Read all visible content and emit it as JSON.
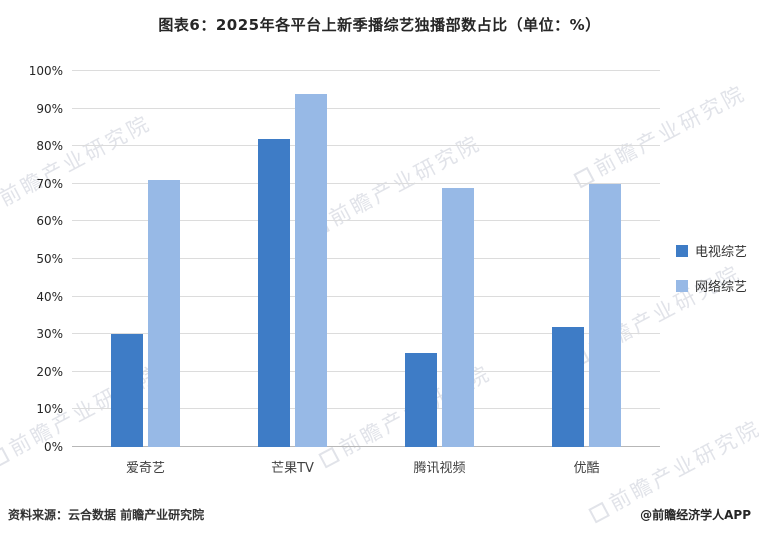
{
  "title": "图表6：2025年各平台上新季播综艺独播部数占比（单位：%）",
  "chart_data": {
    "type": "bar",
    "categories": [
      "爱奇艺",
      "芒果TV",
      "腾讯视频",
      "优酷"
    ],
    "series": [
      {
        "name": "电视综艺",
        "color": "#3e7cc6",
        "values": [
          30,
          82,
          25,
          32
        ]
      },
      {
        "name": "网络综艺",
        "color": "#97b9e6",
        "values": [
          71,
          94,
          69,
          70
        ]
      }
    ],
    "title": "图表6：2025年各平台上新季播综艺独播部数占比（单位：%）",
    "xlabel": "",
    "ylabel": "",
    "ylim": [
      0,
      100
    ],
    "ytick_step": 10,
    "ytick_suffix": "%",
    "grid": true,
    "legend_position": "right"
  },
  "footer": {
    "source": "资料来源：云合数据  前瞻产业研究院",
    "credit": "@前瞻经济学人APP"
  },
  "watermark_text": "前瞻产业研究院"
}
